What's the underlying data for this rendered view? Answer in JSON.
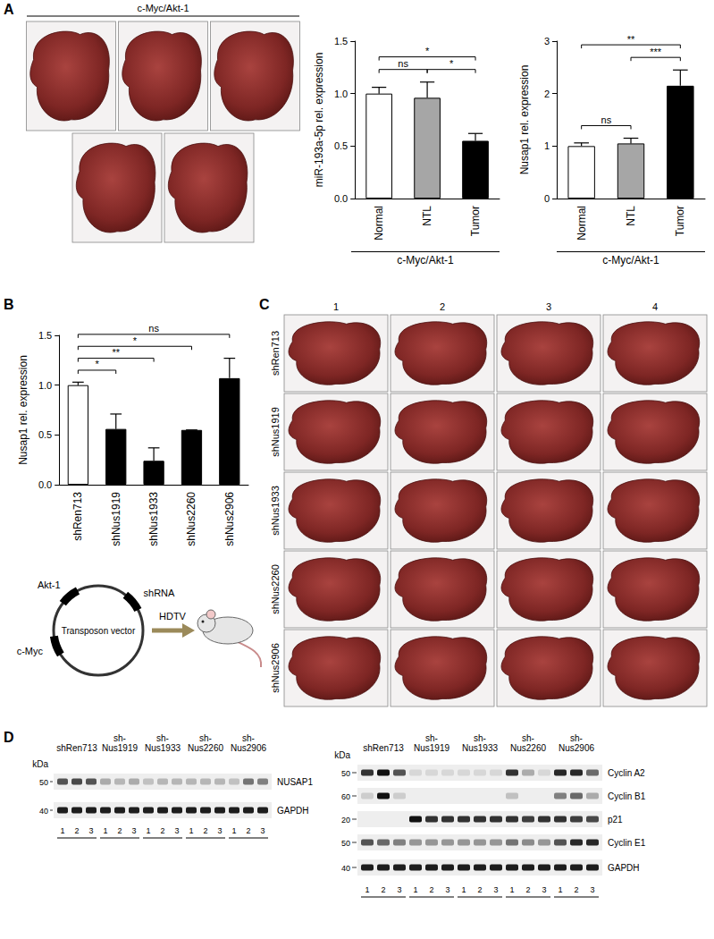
{
  "panel_labels": [
    "A",
    "B",
    "C",
    "D"
  ],
  "photos_A": {
    "label": "c-Myc/Akt-1",
    "count": 5
  },
  "chart_data": [
    {
      "type": "bar",
      "y_label": "miR-193a-5p rel. expression",
      "group_label": "c-Myc/Akt-1",
      "categories": [
        "Normal",
        "NTL",
        "Tumor"
      ],
      "values": [
        1.0,
        0.96,
        0.55
      ],
      "errors": [
        0.06,
        0.15,
        0.07
      ],
      "colors": [
        "#ffffff",
        "#a6a6a6",
        "#000000"
      ],
      "ylim": [
        0,
        1.5
      ],
      "yticks": [
        {
          "value": 0,
          "label": "0.0"
        },
        {
          "value": 0.5,
          "label": "0.5"
        },
        {
          "value": 1,
          "label": "1.0"
        },
        {
          "value": 1.5,
          "label": "1.5"
        }
      ],
      "grid": false,
      "significance": [
        {
          "from": "Normal",
          "to": "NTL",
          "label": "ns"
        },
        {
          "from": "Normal",
          "to": "Tumor",
          "label": "*"
        },
        {
          "from": "NTL",
          "to": "Tumor",
          "label": "*"
        }
      ]
    },
    {
      "type": "bar",
      "y_label": "Nusap1 rel. expression",
      "group_label": "c-Myc/Akt-1",
      "categories": [
        "Normal",
        "NTL",
        "Tumor"
      ],
      "values": [
        1.0,
        1.05,
        2.15
      ],
      "errors": [
        0.06,
        0.1,
        0.3
      ],
      "colors": [
        "#ffffff",
        "#a6a6a6",
        "#000000"
      ],
      "ylim": [
        0,
        3
      ],
      "yticks": [
        0,
        1,
        2,
        3
      ],
      "grid": false,
      "significance": [
        {
          "from": "Normal",
          "to": "NTL",
          "label": "ns"
        },
        {
          "from": "Normal",
          "to": "Tumor",
          "label": "**"
        },
        {
          "from": "NTL",
          "to": "Tumor",
          "label": "***"
        }
      ]
    },
    {
      "type": "bar",
      "y_label": "Nusap1 rel. expression",
      "categories": [
        "shRen713",
        "shNus1919",
        "shNus1933",
        "shNus2260",
        "shNus2906"
      ],
      "values": [
        1.0,
        0.56,
        0.24,
        0.55,
        1.07
      ],
      "errors": [
        0.03,
        0.15,
        0.13,
        0,
        0.2
      ],
      "colors": [
        "#ffffff",
        "#000000",
        "#000000",
        "#000000",
        "#000000"
      ],
      "ylim": [
        0,
        1.5
      ],
      "yticks": [
        {
          "value": 0,
          "label": "0.0"
        },
        {
          "value": 0.5,
          "label": "0.5"
        },
        {
          "value": 1,
          "label": "1.0"
        },
        {
          "value": 1.5,
          "label": "1.5"
        }
      ],
      "grid": false,
      "significance": [
        {
          "from": "shRen713",
          "to": "shNus1919",
          "label": "*"
        },
        {
          "from": "shRen713",
          "to": "shNus1933",
          "label": "**"
        },
        {
          "from": "shRen713",
          "to": "shNus2260",
          "label": "*"
        },
        {
          "from": "shRen713",
          "to": "shNus2906",
          "label": "ns"
        }
      ]
    }
  ],
  "vector_diagram": {
    "labels": [
      "Akt-1",
      "shRNA",
      "c-Myc"
    ],
    "title": "Transposon vector",
    "arrow_label": "HDTV"
  },
  "photos_C": {
    "columns": [
      1,
      2,
      3,
      4
    ],
    "rows": [
      "shRen713",
      "shNus1919",
      "shNus1933",
      "shNus2260",
      "shNus2906"
    ]
  },
  "blots": [
    {
      "kda_label": "kDa",
      "groups": [
        "shRen713",
        "sh-\nNus1919",
        "sh-\nNus1933",
        "sh-\nNus2260",
        "sh-\nNus2906"
      ],
      "lanes": [
        1,
        2,
        3
      ],
      "rows": [
        {
          "label": "NUSAP1",
          "kda": 50,
          "intensities": [
            0.7,
            0.75,
            0.7,
            0.3,
            0.25,
            0.3,
            0.2,
            0.25,
            0.25,
            0.25,
            0.25,
            0.25,
            0.2,
            0.55,
            0.5
          ]
        },
        {
          "label": "GAPDH",
          "kda": 40,
          "intensities": [
            0.95,
            0.95,
            0.95,
            0.95,
            0.95,
            0.95,
            0.95,
            0.95,
            0.95,
            0.95,
            0.95,
            0.95,
            0.95,
            0.95,
            0.95
          ]
        }
      ]
    },
    {
      "kda_label": "kDa",
      "groups": [
        "shRen713",
        "sh-\nNus1919",
        "sh-\nNus1933",
        "sh-\nNus2260",
        "sh-\nNus2906"
      ],
      "lanes": [
        1,
        2,
        3
      ],
      "rows": [
        {
          "label": "Cyclin A2",
          "kda": 50,
          "intensities": [
            0.85,
            1.0,
            0.7,
            0.1,
            0.1,
            0.1,
            0.1,
            0.1,
            0.1,
            0.85,
            0.3,
            0.1,
            0.9,
            0.9,
            0.6
          ]
        },
        {
          "label": "Cyclin B1",
          "kda": 60,
          "intensities": [
            0.15,
            1.0,
            0.15,
            0,
            0,
            0,
            0,
            0,
            0,
            0.2,
            0,
            0,
            0.5,
            0.6,
            0.3
          ]
        },
        {
          "label": "p21",
          "kda": 20,
          "intensities": [
            0,
            0,
            0,
            1.0,
            0.85,
            0.85,
            0.85,
            0.85,
            0.85,
            0.85,
            0.8,
            0.85,
            0.85,
            0.8,
            0.75
          ]
        },
        {
          "label": "Cyclin E1",
          "kda": 50,
          "intensities": [
            0.7,
            0.6,
            0.5,
            0.4,
            0.4,
            0.4,
            0.4,
            0.4,
            0.4,
            0.55,
            0.45,
            0.4,
            0.7,
            0.9,
            0.9
          ]
        },
        {
          "label": "GAPDH",
          "kda": 40,
          "intensities": [
            0.95,
            0.95,
            0.95,
            0.95,
            0.95,
            0.95,
            0.95,
            0.95,
            0.95,
            0.95,
            0.95,
            0.95,
            0.95,
            0.95,
            0.95
          ]
        }
      ]
    }
  ]
}
